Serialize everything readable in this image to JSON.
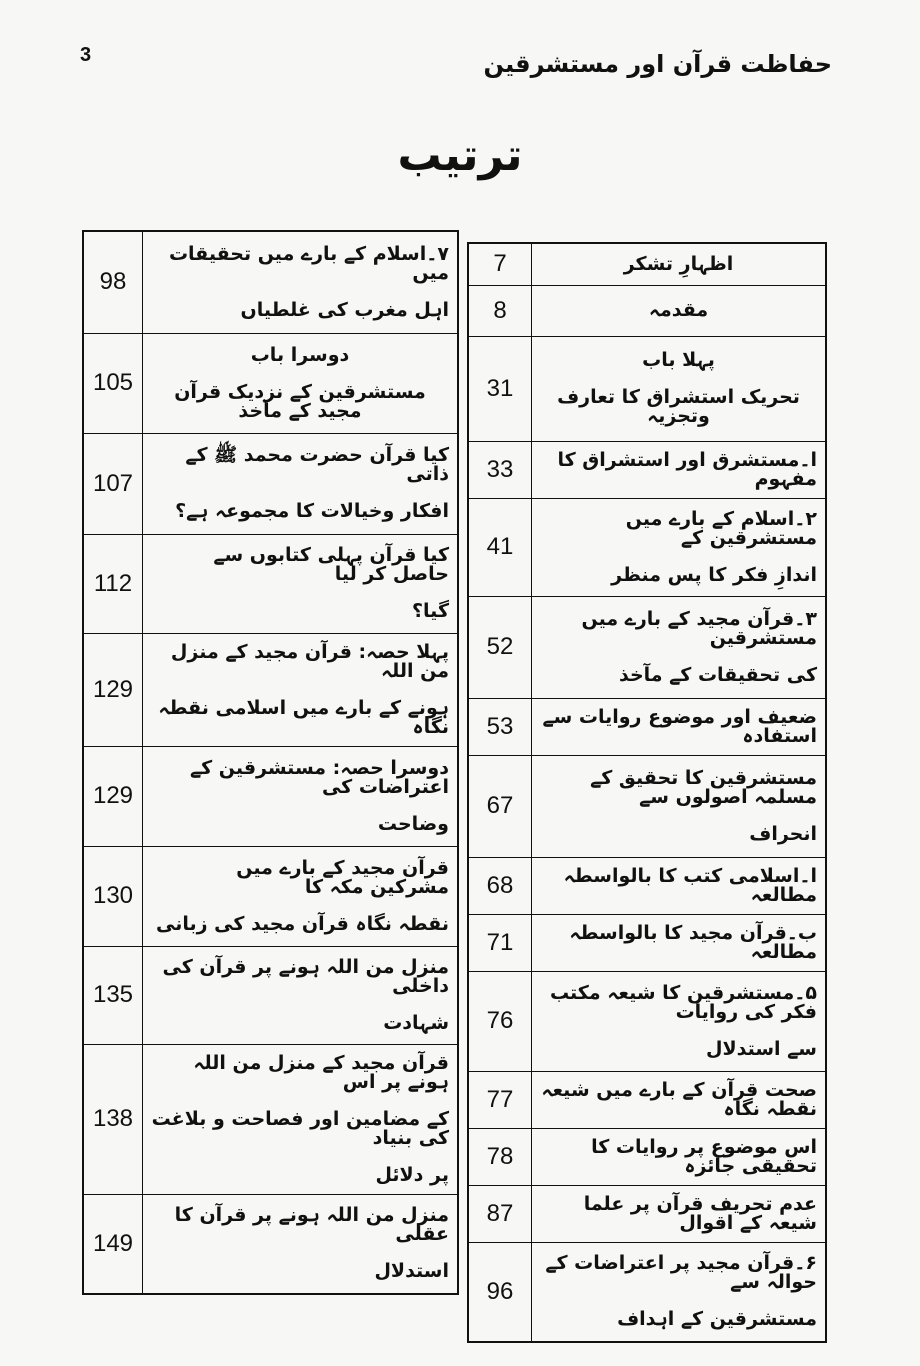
{
  "header": {
    "page_number": "3",
    "running_title": "حفاظت قرآن اور مستشرقین"
  },
  "title": "ترتیب",
  "right_table": [
    {
      "lines": [
        "اظہارِ تشکر"
      ],
      "page": "7",
      "center": true
    },
    {
      "lines": [
        "مقدمہ"
      ],
      "page": "8",
      "center": true
    },
    {
      "lines": [
        "پہلا باب",
        "تحریک استشراق کا تعارف وتجزیہ"
      ],
      "page": "31",
      "center": true
    },
    {
      "lines": [
        "ا۔مستشرق اور استشراق کا مفہوم"
      ],
      "page": "33"
    },
    {
      "lines": [
        "۲۔اسلام کے بارے میں مستشرقین کے",
        "اندازِ فکر کا پس منظر"
      ],
      "page": "41"
    },
    {
      "lines": [
        "۳۔قرآن مجید کے بارے میں مستشرقین",
        "کی تحقیقات کے مآخذ"
      ],
      "page": "52"
    },
    {
      "lines": [
        "ضعیف اور موضوع روایات سے استفادہ"
      ],
      "page": "53"
    },
    {
      "lines": [
        "مستشرقین کا تحقیق کے مسلمہ اصولوں سے",
        "انحراف"
      ],
      "page": "67"
    },
    {
      "lines": [
        "ا۔اسلامی کتب کا بالواسطہ مطالعہ"
      ],
      "page": "68"
    },
    {
      "lines": [
        "ب۔قرآن مجید کا بالواسطہ مطالعہ"
      ],
      "page": "71"
    },
    {
      "lines": [
        "۵۔مستشرقین کا شیعہ مکتب فکر کی روایات",
        "سے استدلال"
      ],
      "page": "76"
    },
    {
      "lines": [
        "صحت قرآن کے بارے میں شیعہ نقطہ نگاہ"
      ],
      "page": "77"
    },
    {
      "lines": [
        "اس موضوع پر روایات کا تحقیقی جائزہ"
      ],
      "page": "78"
    },
    {
      "lines": [
        "عدم تحریف قرآن پر علما شیعہ کے اقوال"
      ],
      "page": "87"
    },
    {
      "lines": [
        "۶۔قرآن مجید پر اعتراضات کے حوالہ سے",
        "مستشرقین کے اہداف"
      ],
      "page": "96"
    }
  ],
  "left_table": [
    {
      "lines": [
        "۷۔اسلام کے بارے میں تحقیقات میں",
        "اہل مغرب کی غلطیاں"
      ],
      "page": "98"
    },
    {
      "lines": [
        "دوسرا باب",
        "مستشرقین کے نزدیک قرآن مجید کے مآخذ"
      ],
      "page": "105",
      "center": true
    },
    {
      "lines": [
        "کیا قرآن حضرت محمد ﷺ کے ذاتی",
        "افکار وخیالات کا مجموعہ ہے؟"
      ],
      "page": "107"
    },
    {
      "lines": [
        "کیا قرآن پہلی کتابوں سے حاصل کر لیا",
        "گیا؟"
      ],
      "page": "112"
    },
    {
      "lines": [
        "پہلا حصہ: قرآن مجید کے منزل من اللہ",
        "ہونے کے بارے میں اسلامی نقطہ نگاہ"
      ],
      "page": "129"
    },
    {
      "lines": [
        "دوسرا حصہ: مستشرقین کے اعتراضات کی",
        "وضاحت"
      ],
      "page": "129"
    },
    {
      "lines": [
        "قرآن مجید کے بارے میں مشرکین مکہ کا",
        "نقطہ نگاہ قرآن مجید کی زبانی"
      ],
      "page": "130"
    },
    {
      "lines": [
        "منزل من اللہ ہونے پر قرآن کی داخلی",
        "شہادت"
      ],
      "page": "135"
    },
    {
      "lines": [
        "قرآن مجید کے منزل من اللہ ہونے پر اس",
        "کے مضامین اور فصاحت و بلاغت کی بنیاد",
        "پر دلائل"
      ],
      "page": "138"
    },
    {
      "lines": [
        "منزل من اللہ ہونے پر قرآن کا عقلی",
        "استدلال"
      ],
      "page": "149"
    }
  ]
}
